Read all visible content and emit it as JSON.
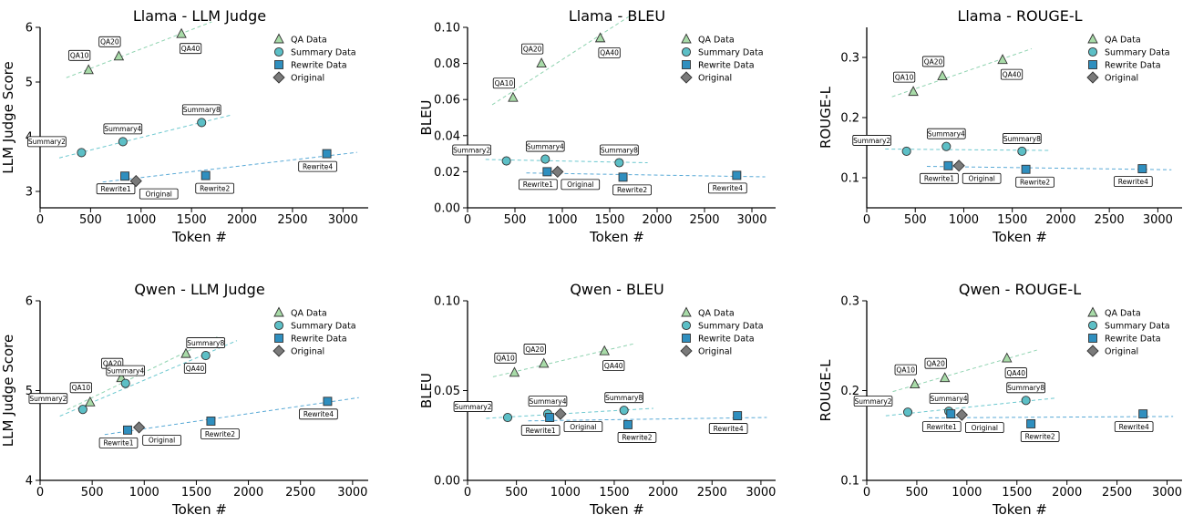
{
  "colors": {
    "qa": "#a8dba8",
    "summary": "#5cbfc6",
    "rewrite": "#2f8fbf",
    "original": "#7a7a7a",
    "qa_trend": "#8fd3b0",
    "summary_trend": "#6cc8cf",
    "rewrite_trend": "#58a9d6"
  },
  "legend": [
    "QA Data",
    "Summary Data",
    "Rewrite Data",
    "Original"
  ],
  "chart_data": [
    {
      "type": "scatter",
      "title": "Llama - LLM Judge",
      "xlabel": "Token #",
      "ylabel": "LLM Judge Score",
      "xlim": [
        0,
        3250
      ],
      "ylim": [
        2.7,
        6.0
      ],
      "xticks": [
        0,
        500,
        1000,
        1500,
        2000,
        2500,
        3000
      ],
      "xtick_labels": [
        "0",
        "500",
        "1000",
        "1500",
        "2000",
        "2500",
        "3000"
      ],
      "yticks": [
        3,
        4,
        5,
        6
      ],
      "ytick_labels": [
        "3",
        "4",
        "5",
        "6"
      ],
      "legend_position": "top-right",
      "series": [
        {
          "name": "QA Data",
          "marker": "triangle",
          "points": [
            {
              "x": 480,
              "y": 5.22,
              "label": "QA10"
            },
            {
              "x": 780,
              "y": 5.47,
              "label": "QA20"
            },
            {
              "x": 1400,
              "y": 5.88,
              "label": "QA40"
            }
          ]
        },
        {
          "name": "Summary Data",
          "marker": "circle",
          "points": [
            {
              "x": 410,
              "y": 3.71,
              "label": "Summary2"
            },
            {
              "x": 820,
              "y": 3.91,
              "label": "Summary4"
            },
            {
              "x": 1600,
              "y": 4.26,
              "label": "Summary8"
            }
          ]
        },
        {
          "name": "Rewrite Data",
          "marker": "square",
          "points": [
            {
              "x": 840,
              "y": 3.28,
              "label": "Rewrite1"
            },
            {
              "x": 1640,
              "y": 3.29,
              "label": "Rewrite2"
            },
            {
              "x": 2840,
              "y": 3.69,
              "label": "Rewrite4"
            }
          ]
        },
        {
          "name": "Original",
          "marker": "diamond",
          "points": [
            {
              "x": 950,
              "y": 3.19,
              "label": "Original"
            }
          ]
        }
      ]
    },
    {
      "type": "scatter",
      "title": "Llama - BLEU",
      "xlabel": "Token #",
      "ylabel": "BLEU",
      "xlim": [
        0,
        3250
      ],
      "ylim": [
        0,
        0.1
      ],
      "xticks": [
        0,
        500,
        1000,
        1500,
        2000,
        2500,
        3000
      ],
      "xtick_labels": [
        "0",
        "500",
        "1000",
        "1500",
        "2000",
        "2500",
        "3000"
      ],
      "yticks": [
        0,
        0.02,
        0.04,
        0.06,
        0.08,
        0.1
      ],
      "ytick_labels": [
        "0.00",
        "0.02",
        "0.04",
        "0.06",
        "0.08",
        "0.10"
      ],
      "legend_position": "top-right",
      "series": [
        {
          "name": "QA Data",
          "marker": "triangle",
          "points": [
            {
              "x": 480,
              "y": 0.061,
              "label": "QA10"
            },
            {
              "x": 780,
              "y": 0.08,
              "label": "QA20"
            },
            {
              "x": 1400,
              "y": 0.094,
              "label": "QA40"
            }
          ]
        },
        {
          "name": "Summary Data",
          "marker": "circle",
          "points": [
            {
              "x": 410,
              "y": 0.026,
              "label": "Summary2"
            },
            {
              "x": 820,
              "y": 0.027,
              "label": "Summary4"
            },
            {
              "x": 1600,
              "y": 0.025,
              "label": "Summary8"
            }
          ]
        },
        {
          "name": "Rewrite Data",
          "marker": "square",
          "points": [
            {
              "x": 840,
              "y": 0.02,
              "label": "Rewrite1"
            },
            {
              "x": 1640,
              "y": 0.017,
              "label": "Rewrite2"
            },
            {
              "x": 2840,
              "y": 0.018,
              "label": "Rewrite4"
            }
          ]
        },
        {
          "name": "Original",
          "marker": "diamond",
          "points": [
            {
              "x": 950,
              "y": 0.02,
              "label": "Original"
            }
          ]
        }
      ]
    },
    {
      "type": "scatter",
      "title": "Llama - ROUGE-L",
      "xlabel": "Token #",
      "ylabel": "ROUGE-L",
      "xlim": [
        0,
        3250
      ],
      "ylim": [
        0.05,
        0.35
      ],
      "xticks": [
        0,
        500,
        1000,
        1500,
        2000,
        2500,
        3000
      ],
      "xtick_labels": [
        "0",
        "500",
        "1000",
        "1500",
        "2000",
        "2500",
        "3000"
      ],
      "yticks": [
        0.1,
        0.2,
        0.3
      ],
      "ytick_labels": [
        "0.1",
        "0.2",
        "0.3"
      ],
      "legend_position": "top-right",
      "series": [
        {
          "name": "QA Data",
          "marker": "triangle",
          "points": [
            {
              "x": 480,
              "y": 0.243,
              "label": "QA10"
            },
            {
              "x": 780,
              "y": 0.269,
              "label": "QA20"
            },
            {
              "x": 1400,
              "y": 0.296,
              "label": "QA40"
            }
          ]
        },
        {
          "name": "Summary Data",
          "marker": "circle",
          "points": [
            {
              "x": 410,
              "y": 0.144,
              "label": "Summary2"
            },
            {
              "x": 820,
              "y": 0.152,
              "label": "Summary4"
            },
            {
              "x": 1600,
              "y": 0.144,
              "label": "Summary8"
            }
          ]
        },
        {
          "name": "Rewrite Data",
          "marker": "square",
          "points": [
            {
              "x": 840,
              "y": 0.12,
              "label": "Rewrite1"
            },
            {
              "x": 1640,
              "y": 0.114,
              "label": "Rewrite2"
            },
            {
              "x": 2840,
              "y": 0.115,
              "label": "Rewrite4"
            }
          ]
        },
        {
          "name": "Original",
          "marker": "diamond",
          "points": [
            {
              "x": 950,
              "y": 0.12,
              "label": "Original"
            }
          ]
        }
      ]
    },
    {
      "type": "scatter",
      "title": "Qwen - LLM Judge",
      "xlabel": "Token #",
      "ylabel": "LLM Judge Score",
      "xlim": [
        0,
        3150
      ],
      "ylim": [
        4.0,
        6.0
      ],
      "xticks": [
        0,
        500,
        1000,
        1500,
        2000,
        2500,
        3000
      ],
      "xtick_labels": [
        "0",
        "500",
        "1000",
        "1500",
        "2000",
        "2500",
        "3000"
      ],
      "yticks": [
        4,
        5,
        6
      ],
      "ytick_labels": [
        "4",
        "5",
        "6"
      ],
      "legend_position": "top-right",
      "series": [
        {
          "name": "QA Data",
          "marker": "triangle",
          "points": [
            {
              "x": 480,
              "y": 4.87,
              "label": "QA10"
            },
            {
              "x": 780,
              "y": 5.14,
              "label": "QA20"
            },
            {
              "x": 1400,
              "y": 5.41,
              "label": "QA40"
            }
          ]
        },
        {
          "name": "Summary Data",
          "marker": "circle",
          "points": [
            {
              "x": 410,
              "y": 4.79,
              "label": "Summary2"
            },
            {
              "x": 820,
              "y": 5.08,
              "label": "Summary4"
            },
            {
              "x": 1590,
              "y": 5.39,
              "label": "Summary8"
            }
          ]
        },
        {
          "name": "Rewrite Data",
          "marker": "square",
          "points": [
            {
              "x": 840,
              "y": 4.56,
              "label": "Rewrite1"
            },
            {
              "x": 1640,
              "y": 4.66,
              "label": "Rewrite2"
            },
            {
              "x": 2760,
              "y": 4.88,
              "label": "Rewrite4"
            }
          ]
        },
        {
          "name": "Original",
          "marker": "diamond",
          "points": [
            {
              "x": 950,
              "y": 4.59,
              "label": "Original"
            }
          ]
        }
      ]
    },
    {
      "type": "scatter",
      "title": "Qwen - BLEU",
      "xlabel": "Token #",
      "ylabel": "BLEU",
      "xlim": [
        0,
        3150
      ],
      "ylim": [
        0,
        0.1
      ],
      "xticks": [
        0,
        500,
        1000,
        1500,
        2000,
        2500,
        3000
      ],
      "xtick_labels": [
        "0",
        "500",
        "1000",
        "1500",
        "2000",
        "2500",
        "3000"
      ],
      "yticks": [
        0,
        0.05,
        0.1
      ],
      "ytick_labels": [
        "0.00",
        "0.05",
        "0.10"
      ],
      "legend_position": "top-right",
      "series": [
        {
          "name": "QA Data",
          "marker": "triangle",
          "points": [
            {
              "x": 480,
              "y": 0.06,
              "label": "QA10"
            },
            {
              "x": 780,
              "y": 0.065,
              "label": "QA20"
            },
            {
              "x": 1400,
              "y": 0.072,
              "label": "QA40"
            }
          ]
        },
        {
          "name": "Summary Data",
          "marker": "circle",
          "points": [
            {
              "x": 410,
              "y": 0.035,
              "label": "Summary2"
            },
            {
              "x": 820,
              "y": 0.037,
              "label": "Summary4"
            },
            {
              "x": 1600,
              "y": 0.039,
              "label": "Summary8"
            }
          ]
        },
        {
          "name": "Rewrite Data",
          "marker": "square",
          "points": [
            {
              "x": 840,
              "y": 0.035,
              "label": "Rewrite1"
            },
            {
              "x": 1640,
              "y": 0.031,
              "label": "Rewrite2"
            },
            {
              "x": 2760,
              "y": 0.036,
              "label": "Rewrite4"
            }
          ]
        },
        {
          "name": "Original",
          "marker": "diamond",
          "points": [
            {
              "x": 950,
              "y": 0.037,
              "label": "Original"
            }
          ]
        }
      ]
    },
    {
      "type": "scatter",
      "title": "Qwen - ROUGE-L",
      "xlabel": "Token #",
      "ylabel": "ROUGE-L",
      "xlim": [
        0,
        3150
      ],
      "ylim": [
        0.1,
        0.3
      ],
      "xticks": [
        0,
        500,
        1000,
        1500,
        2000,
        2500,
        3000
      ],
      "xtick_labels": [
        "0",
        "500",
        "1000",
        "1500",
        "2000",
        "2500",
        "3000"
      ],
      "yticks": [
        0.1,
        0.2,
        0.3
      ],
      "ytick_labels": [
        "0.1",
        "0.2",
        "0.3"
      ],
      "legend_position": "top-right",
      "series": [
        {
          "name": "QA Data",
          "marker": "triangle",
          "points": [
            {
              "x": 480,
              "y": 0.207,
              "label": "QA10"
            },
            {
              "x": 780,
              "y": 0.214,
              "label": "QA20"
            },
            {
              "x": 1400,
              "y": 0.236,
              "label": "QA40"
            }
          ]
        },
        {
          "name": "Summary Data",
          "marker": "circle",
          "points": [
            {
              "x": 410,
              "y": 0.176,
              "label": "Summary2"
            },
            {
              "x": 820,
              "y": 0.177,
              "label": "Summary4"
            },
            {
              "x": 1590,
              "y": 0.189,
              "label": "Summary8"
            }
          ]
        },
        {
          "name": "Rewrite Data",
          "marker": "square",
          "points": [
            {
              "x": 840,
              "y": 0.174,
              "label": "Rewrite1"
            },
            {
              "x": 1640,
              "y": 0.163,
              "label": "Rewrite2"
            },
            {
              "x": 2760,
              "y": 0.174,
              "label": "Rewrite4"
            }
          ]
        },
        {
          "name": "Original",
          "marker": "diamond",
          "points": [
            {
              "x": 950,
              "y": 0.173,
              "label": "Original"
            }
          ]
        }
      ]
    }
  ]
}
